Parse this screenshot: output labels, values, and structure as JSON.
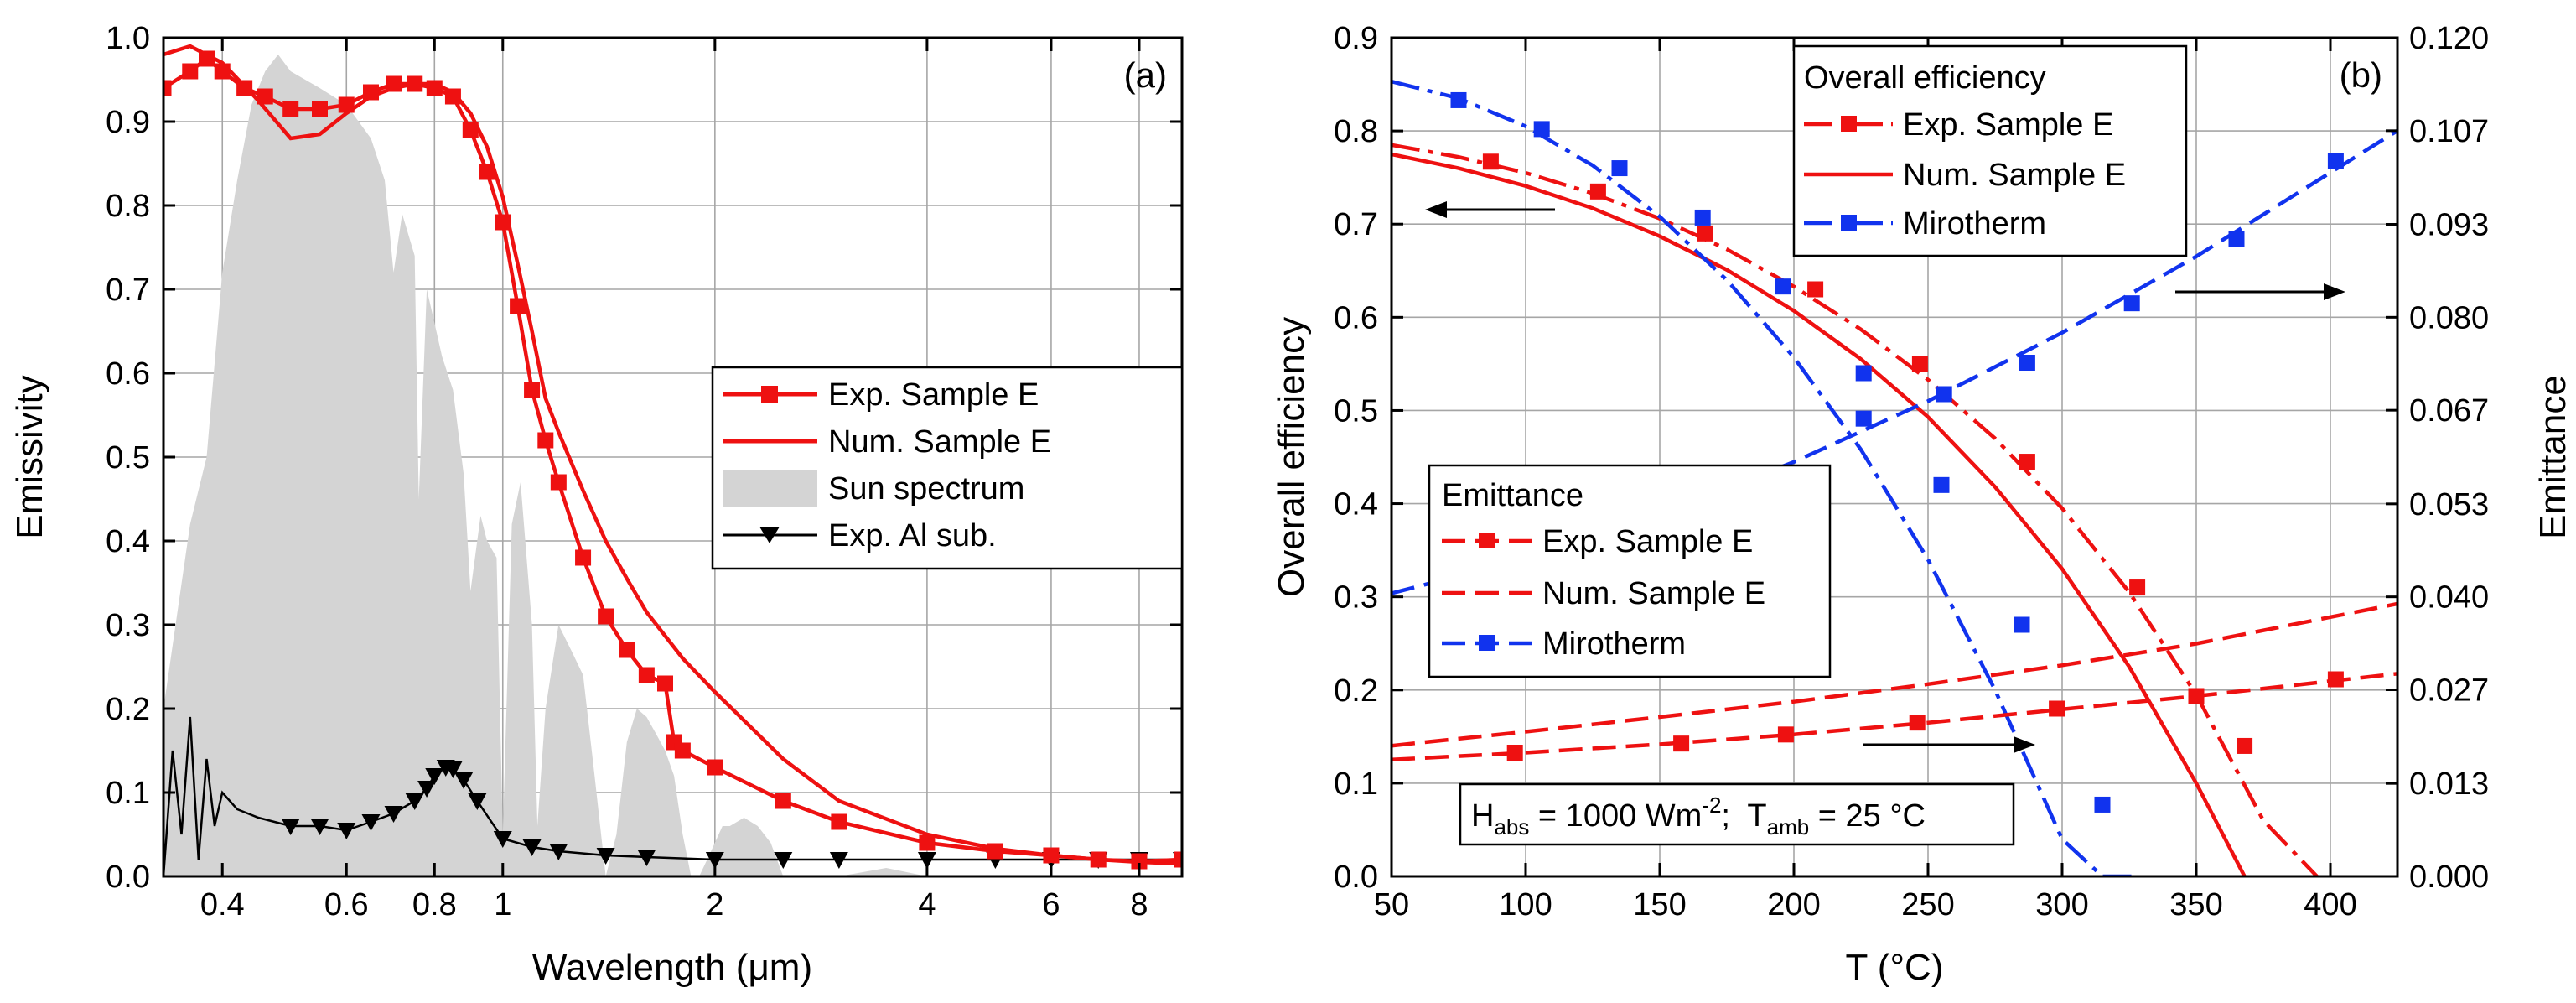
{
  "colors": {
    "red": "#ee1111",
    "blue": "#1133ee",
    "black": "#000000",
    "sun": "#d4d4d4",
    "grid": "#a6a6a6"
  },
  "chart_data": [
    {
      "type": "line",
      "panel_label": "(a)",
      "xlabel": "Wavelength (μm)",
      "ylabel": "Emissivity",
      "xscale": "log",
      "xlim": [
        0.33,
        9.2
      ],
      "ylim": [
        0,
        1.0
      ],
      "x_ticks": [
        0.4,
        0.6,
        0.8,
        1,
        2,
        4,
        6,
        8
      ],
      "x_tick_labels": [
        "0.4",
        "0.6",
        "0.8",
        "1",
        "2",
        "4",
        "6",
        "8"
      ],
      "y_ticks": [
        0.0,
        0.1,
        0.2,
        0.3,
        0.4,
        0.5,
        0.6,
        0.7,
        0.8,
        0.9,
        1.0
      ],
      "y_tick_labels": [
        "0.0",
        "0.1",
        "0.2",
        "0.3",
        "0.4",
        "0.5",
        "0.6",
        "0.7",
        "0.8",
        "0.9",
        "1.0"
      ],
      "grid": true,
      "legend": {
        "position": "center-right",
        "entries": [
          "Exp. Sample E",
          "Num. Sample E",
          "Sun spectrum",
          "Exp. Al sub."
        ]
      },
      "series": [
        {
          "name": "Exp. Sample E",
          "style": "line-square-markers",
          "color": "#ee1111",
          "x": [
            0.33,
            0.36,
            0.38,
            0.4,
            0.43,
            0.46,
            0.5,
            0.55,
            0.6,
            0.65,
            0.7,
            0.75,
            0.8,
            0.85,
            0.9,
            0.95,
            1.0,
            1.05,
            1.1,
            1.15,
            1.2,
            1.3,
            1.4,
            1.5,
            1.6,
            1.7,
            1.75,
            1.8,
            2.0,
            2.5,
            3.0,
            4.0,
            5.0,
            6.0,
            7.0,
            8.0,
            9.2
          ],
          "y": [
            0.94,
            0.96,
            0.975,
            0.96,
            0.94,
            0.93,
            0.915,
            0.915,
            0.92,
            0.935,
            0.945,
            0.945,
            0.94,
            0.93,
            0.89,
            0.84,
            0.78,
            0.68,
            0.58,
            0.52,
            0.47,
            0.38,
            0.31,
            0.27,
            0.24,
            0.23,
            0.16,
            0.15,
            0.13,
            0.09,
            0.065,
            0.04,
            0.03,
            0.025,
            0.02,
            0.018,
            0.02
          ]
        },
        {
          "name": "Num. Sample E",
          "style": "line",
          "color": "#ee1111",
          "x": [
            0.33,
            0.36,
            0.4,
            0.45,
            0.5,
            0.55,
            0.6,
            0.65,
            0.7,
            0.75,
            0.8,
            0.85,
            0.9,
            0.95,
            1.0,
            1.05,
            1.1,
            1.15,
            1.2,
            1.3,
            1.4,
            1.5,
            1.6,
            1.8,
            2.0,
            2.5,
            3.0,
            4.0,
            5.0,
            6.0,
            7.0,
            8.0,
            9.2
          ],
          "y": [
            0.98,
            0.99,
            0.97,
            0.925,
            0.88,
            0.885,
            0.91,
            0.93,
            0.94,
            0.945,
            0.945,
            0.935,
            0.91,
            0.87,
            0.81,
            0.73,
            0.65,
            0.57,
            0.53,
            0.46,
            0.4,
            0.355,
            0.315,
            0.26,
            0.22,
            0.14,
            0.09,
            0.05,
            0.033,
            0.025,
            0.02,
            0.017,
            0.015
          ]
        },
        {
          "name": "Sun spectrum",
          "style": "filled-area",
          "color": "#d4d4d4",
          "x": [
            0.33,
            0.36,
            0.38,
            0.4,
            0.42,
            0.44,
            0.46,
            0.48,
            0.5,
            0.55,
            0.6,
            0.65,
            0.68,
            0.7,
            0.72,
            0.75,
            0.76,
            0.78,
            0.8,
            0.82,
            0.85,
            0.88,
            0.9,
            0.93,
            0.95,
            0.98,
            1.0,
            1.03,
            1.06,
            1.1,
            1.12,
            1.15,
            1.2,
            1.25,
            1.3,
            1.35,
            1.4,
            1.45,
            1.5,
            1.55,
            1.6,
            1.65,
            1.7,
            1.75,
            1.8,
            1.85,
            1.9,
            1.95,
            2.0,
            2.05,
            2.1,
            2.2,
            2.3,
            2.4,
            2.5,
            2.7,
            3.0,
            3.5,
            4.0
          ],
          "y": [
            0.2,
            0.42,
            0.5,
            0.72,
            0.83,
            0.92,
            0.96,
            0.98,
            0.96,
            0.94,
            0.92,
            0.88,
            0.83,
            0.72,
            0.79,
            0.74,
            0.45,
            0.7,
            0.66,
            0.62,
            0.58,
            0.48,
            0.34,
            0.43,
            0.4,
            0.38,
            0.05,
            0.42,
            0.47,
            0.3,
            0.06,
            0.2,
            0.3,
            0.27,
            0.24,
            0.12,
            0.0,
            0.05,
            0.16,
            0.2,
            0.19,
            0.17,
            0.15,
            0.12,
            0.05,
            0.0,
            0.0,
            0.02,
            0.04,
            0.06,
            0.06,
            0.07,
            0.06,
            0.04,
            0.0,
            0.0,
            0.0,
            0.01,
            0.0
          ]
        },
        {
          "name": "Exp. Al sub.",
          "style": "line-triangle-markers",
          "color": "#000000",
          "x": [
            0.33,
            0.34,
            0.35,
            0.36,
            0.37,
            0.38,
            0.39,
            0.4,
            0.42,
            0.45,
            0.5,
            0.55,
            0.6,
            0.65,
            0.7,
            0.75,
            0.78,
            0.8,
            0.83,
            0.85,
            0.88,
            0.92,
            1.0,
            1.1,
            1.2,
            1.4,
            1.6,
            2.0,
            2.5,
            3.0,
            4.0,
            5.0,
            6.0,
            7.0,
            8.0,
            9.2
          ],
          "y": [
            0.0,
            0.15,
            0.05,
            0.19,
            0.02,
            0.14,
            0.06,
            0.1,
            0.08,
            0.07,
            0.06,
            0.06,
            0.055,
            0.065,
            0.075,
            0.09,
            0.105,
            0.12,
            0.13,
            0.128,
            0.115,
            0.09,
            0.045,
            0.035,
            0.03,
            0.025,
            0.023,
            0.02,
            0.02,
            0.02,
            0.02,
            0.02,
            0.02,
            0.02,
            0.02,
            0.02
          ]
        }
      ]
    },
    {
      "type": "line",
      "panel_label": "(b)",
      "xlabel": "T (°C)",
      "ylabel": "Overall efficiency",
      "ylabel_right": "Emittance",
      "xlim": [
        50,
        425
      ],
      "ylim": [
        0,
        0.9
      ],
      "ylim_right": [
        0,
        0.12
      ],
      "x_ticks": [
        50,
        100,
        150,
        200,
        250,
        300,
        350,
        400
      ],
      "x_tick_labels": [
        "50",
        "100",
        "150",
        "200",
        "250",
        "300",
        "350",
        "400"
      ],
      "y_ticks": [
        0.0,
        0.1,
        0.2,
        0.3,
        0.4,
        0.5,
        0.6,
        0.7,
        0.8,
        0.9
      ],
      "y_tick_labels": [
        "0.0",
        "0.1",
        "0.2",
        "0.3",
        "0.4",
        "0.5",
        "0.6",
        "0.7",
        "0.8",
        "0.9"
      ],
      "y_right_ticks": [
        0.0,
        0.0133,
        0.0267,
        0.04,
        0.0533,
        0.0667,
        0.08,
        0.0933,
        0.1067,
        0.12
      ],
      "y_right_tick_labels": [
        "0.000",
        "0.013",
        "0.027",
        "0.040",
        "0.053",
        "0.067",
        "0.080",
        "0.093",
        "0.107",
        "0.120"
      ],
      "grid": true,
      "legends": [
        {
          "title": "Overall efficiency",
          "position": "top-center",
          "entries": [
            "Exp. Sample E",
            "Num. Sample E",
            "Mirotherm"
          ]
        },
        {
          "title": "Emittance",
          "position": "center-left",
          "entries": [
            "Exp. Sample E",
            "Num. Sample E",
            "Mirotherm"
          ]
        }
      ],
      "annotation": {
        "h_label": "H",
        "h_sub": "abs",
        "h_value": " = 1000 Wm",
        "h_sup": "-2",
        "separator": ";  ",
        "t_label": "T",
        "t_sub": "amb",
        "t_value": " = 25 °C"
      },
      "series": [
        {
          "name": "Exp. Sample E",
          "group": "Overall efficiency",
          "axis": "left",
          "style": "dash-dot-square-markers",
          "color": "#ee1111",
          "x": [
            50,
            75,
            100,
            125,
            150,
            175,
            200,
            225,
            250,
            275,
            300,
            325,
            350,
            375,
            395
          ],
          "y": [
            0.785,
            0.772,
            0.755,
            0.733,
            0.706,
            0.673,
            0.633,
            0.587,
            0.533,
            0.47,
            0.395,
            0.305,
            0.195,
            0.06,
            0.0
          ],
          "marker_x": [
            87,
            127,
            167,
            208,
            247,
            287,
            328,
            368
          ],
          "marker_y": [
            0.767,
            0.735,
            0.69,
            0.63,
            0.55,
            0.445,
            0.31,
            0.14
          ]
        },
        {
          "name": "Num. Sample E",
          "group": "Overall efficiency",
          "axis": "left",
          "style": "line",
          "color": "#ee1111",
          "x": [
            50,
            75,
            100,
            125,
            150,
            175,
            200,
            225,
            250,
            275,
            300,
            325,
            350,
            368
          ],
          "y": [
            0.775,
            0.76,
            0.741,
            0.717,
            0.687,
            0.651,
            0.607,
            0.555,
            0.493,
            0.418,
            0.33,
            0.225,
            0.1,
            0.0
          ]
        },
        {
          "name": "Mirotherm",
          "group": "Overall efficiency",
          "axis": "left",
          "style": "dash-dot-square-markers",
          "color": "#1133ee",
          "x": [
            50,
            75,
            100,
            125,
            150,
            175,
            200,
            225,
            250,
            275,
            300,
            315,
            327
          ],
          "y": [
            0.853,
            0.835,
            0.805,
            0.763,
            0.708,
            0.64,
            0.557,
            0.458,
            0.34,
            0.2,
            0.04,
            0.0,
            0.0
          ],
          "marker_x": [
            75,
            106,
            135,
            166,
            196,
            226,
            255,
            285,
            315
          ],
          "marker_y": [
            0.833,
            0.802,
            0.76,
            0.707,
            0.633,
            0.54,
            0.42,
            0.27,
            0.077
          ]
        },
        {
          "name": "Exp. Sample E",
          "group": "Emittance",
          "axis": "right",
          "style": "long-dash-square-markers",
          "color": "#ee1111",
          "x": [
            50,
            100,
            150,
            200,
            250,
            300,
            350,
            425
          ],
          "y": [
            0.0167,
            0.0177,
            0.0189,
            0.0203,
            0.022,
            0.0239,
            0.0258,
            0.029
          ],
          "marker_x": [
            96,
            158,
            197,
            246,
            298,
            350,
            402
          ],
          "marker_y": [
            0.0177,
            0.019,
            0.0203,
            0.022,
            0.024,
            0.0258,
            0.0282
          ]
        },
        {
          "name": "Num. Sample E",
          "group": "Emittance",
          "axis": "right",
          "style": "long-dash",
          "color": "#ee1111",
          "x": [
            50,
            100,
            150,
            200,
            250,
            300,
            350,
            425
          ],
          "y": [
            0.0187,
            0.0207,
            0.0228,
            0.025,
            0.0275,
            0.0302,
            0.0333,
            0.039
          ]
        },
        {
          "name": "Mirotherm",
          "group": "Emittance",
          "axis": "right",
          "style": "long-dash-square-markers",
          "color": "#1133ee",
          "x": [
            50,
            100,
            150,
            200,
            250,
            300,
            350,
            400,
            425
          ],
          "y": [
            0.0405,
            0.0455,
            0.0518,
            0.0593,
            0.068,
            0.0778,
            0.0887,
            0.1007,
            0.1067
          ],
          "marker_x": [
            226,
            256,
            287,
            326,
            365,
            402
          ],
          "marker_y": [
            0.0655,
            0.069,
            0.0735,
            0.082,
            0.0912,
            0.1023
          ]
        }
      ]
    }
  ]
}
